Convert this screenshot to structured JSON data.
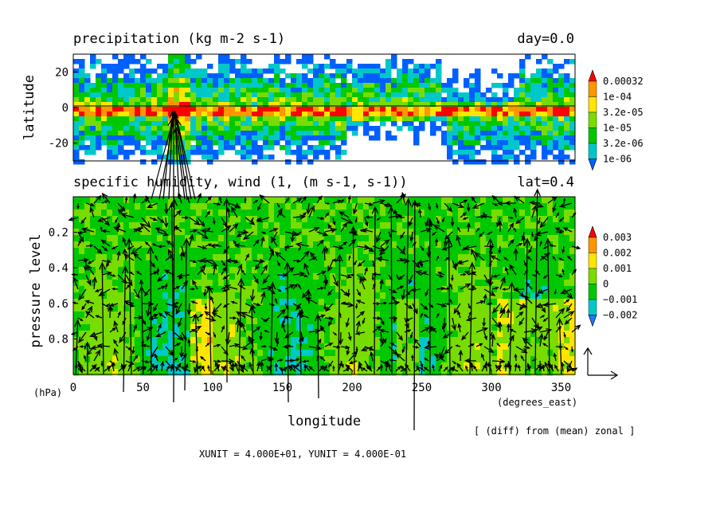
{
  "colors": {
    "precip_levels": [
      "#0060ff",
      "#00c8c8",
      "#00c800",
      "#78dc00",
      "#ffe600",
      "#ff9600",
      "#ff0000"
    ],
    "humidity_levels": [
      "#1e78ff",
      "#00c8c8",
      "#00c800",
      "#78dc00",
      "#ffe600",
      "#ff9600",
      "#ff0000"
    ],
    "vector": "#000000",
    "background": "#ffffff"
  },
  "chart_data": [
    {
      "type": "heatmap",
      "title": "precipitation (kg m-2 s-1)",
      "title_right": "day=0.0",
      "ylabel": "latitude",
      "xlim": [
        0,
        360
      ],
      "ylim": [
        -30,
        30
      ],
      "yticks": [
        20,
        0,
        -20
      ],
      "zero_line": true,
      "colorbar": {
        "labels": [
          "0.00032",
          "1e-04",
          "3.2e-05",
          "1e-05",
          "3.2e-06",
          "1e-06"
        ]
      }
    },
    {
      "type": "heatmap",
      "title": "specific humidity, wind (1, (m s-1, s-1))",
      "title_right": "lat=0.4",
      "ylabel": "pressure level",
      "yunit": "(hPa)",
      "xlabel": "longitude",
      "xunit": "(degrees_east)",
      "xlim": [
        0,
        360
      ],
      "ylim": [
        1.0,
        0.0
      ],
      "xticks": [
        0,
        50,
        100,
        150,
        200,
        250,
        300,
        350
      ],
      "yticks": [
        0.2,
        0.4,
        0.6,
        0.8
      ],
      "overlay": "wind vectors",
      "colorbar": {
        "labels": [
          "0.003",
          "0.002",
          "0.001",
          "0",
          "−0.001",
          "−0.002"
        ]
      }
    }
  ],
  "footer": {
    "note": "[ (diff) from (mean) zonal ]",
    "units": "XUNIT = 4.000E+01, YUNIT = 4.000E-01"
  }
}
